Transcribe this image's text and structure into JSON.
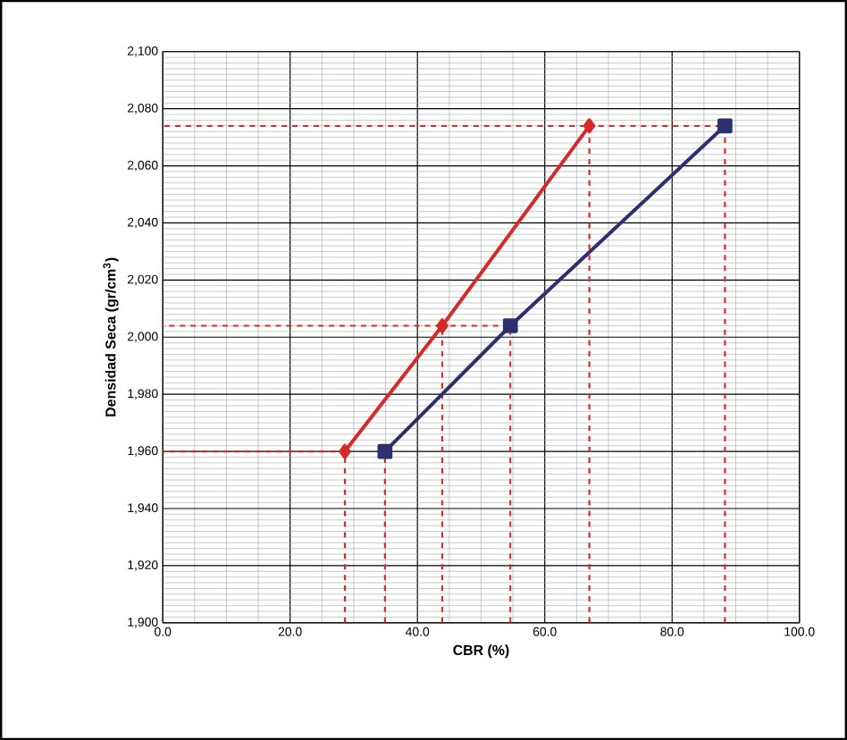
{
  "chart_data": {
    "type": "line",
    "xlabel": "CBR (%)",
    "ylabel": "Densidad Seca (gr/cm$^{3}$)",
    "xlim": [
      0,
      100
    ],
    "xticks": [
      {
        "value": 0,
        "label": "0.0"
      },
      {
        "value": 20,
        "label": "20.0"
      },
      {
        "value": 40,
        "label": "40.0"
      },
      {
        "value": 60,
        "label": "60.0"
      },
      {
        "value": 80,
        "label": "80.0"
      },
      {
        "value": 100,
        "label": "100.0"
      }
    ],
    "ylim": [
      1900,
      2100
    ],
    "yticks": [
      {
        "value": 1900,
        "label": "1,900"
      },
      {
        "value": 1920,
        "label": "1,920"
      },
      {
        "value": 1940,
        "label": "1,940"
      },
      {
        "value": 1960,
        "label": "1,960"
      },
      {
        "value": 1980,
        "label": "1,980"
      },
      {
        "value": 2000,
        "label": "2,000"
      },
      {
        "value": 2020,
        "label": "2,020"
      },
      {
        "value": 2040,
        "label": "2,040"
      },
      {
        "value": 2060,
        "label": "2,060"
      },
      {
        "value": 2080,
        "label": "2,080"
      },
      {
        "value": 2100,
        "label": "2,100"
      }
    ],
    "grid": true,
    "series": [
      {
        "color": "#d42a2a",
        "marker": "diamond",
        "line_style": "solid",
        "x": [
          28.6,
          43.9,
          67.0
        ],
        "values": [
          1960,
          2004,
          2074
        ]
      },
      {
        "color": "#2e2f6e",
        "marker": "square",
        "line_style": "solid",
        "x": [
          34.9,
          54.6,
          88.3
        ],
        "values": [
          1960,
          2004,
          2074
        ]
      },
      {
        "color": "#d42a2a",
        "marker": "none",
        "line_style": "dashed",
        "x": [
          28.6,
          28.6,
          0
        ],
        "values": [
          1900,
          1960,
          1960
        ]
      },
      {
        "color": "#d42a2a",
        "marker": "none",
        "line_style": "dashed",
        "x": [
          43.9,
          43.9,
          0
        ],
        "values": [
          1900,
          2004,
          2004
        ]
      },
      {
        "color": "#d42a2a",
        "marker": "none",
        "line_style": "dashed",
        "x": [
          67.0,
          67.0,
          0
        ],
        "values": [
          1900,
          2074,
          2074
        ]
      },
      {
        "color": "#d42a2a",
        "marker": "none",
        "line_style": "dashed",
        "x": [
          34.9,
          34.9
        ],
        "values": [
          1900,
          1960
        ]
      },
      {
        "color": "#d42a2a",
        "marker": "none",
        "line_style": "dashed",
        "x": [
          54.6,
          54.6,
          43.9
        ],
        "values": [
          1900,
          2004,
          2004
        ]
      },
      {
        "color": "#d42a2a",
        "marker": "none",
        "line_style": "dashed",
        "x": [
          88.3,
          88.3,
          67.0
        ],
        "values": [
          1900,
          2074,
          2074
        ]
      }
    ]
  }
}
